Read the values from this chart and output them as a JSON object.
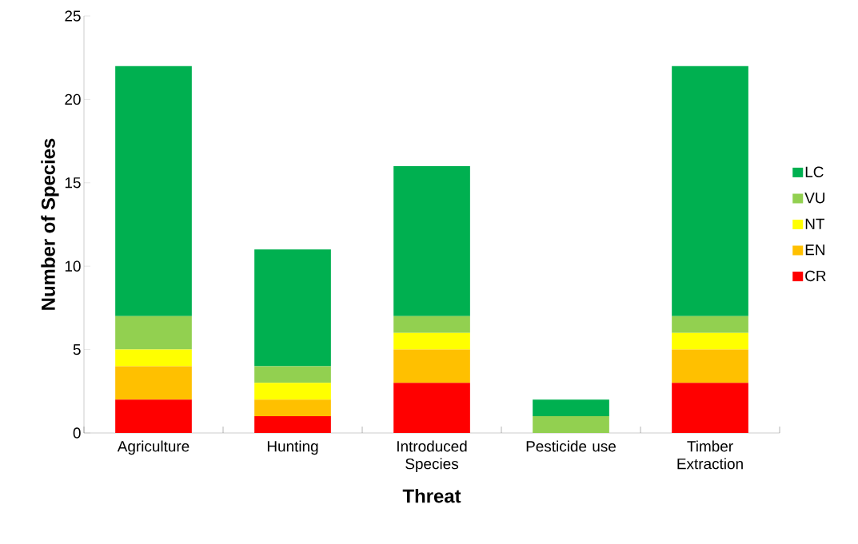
{
  "chart_data": {
    "type": "bar",
    "stacked": true,
    "xlabel": "Threat",
    "ylabel": "Number of Species",
    "categories": [
      "Agriculture",
      "Hunting",
      "Introduced Species",
      "Pesticide use",
      "Timber Extraction"
    ],
    "series": [
      {
        "name": "CR",
        "color": "#ff0000",
        "values": [
          2,
          1,
          3,
          0,
          3
        ]
      },
      {
        "name": "EN",
        "color": "#ffc000",
        "values": [
          2,
          1,
          2,
          0,
          2
        ]
      },
      {
        "name": "NT",
        "color": "#ffff00",
        "values": [
          1,
          1,
          1,
          0,
          1
        ]
      },
      {
        "name": "VU",
        "color": "#92d050",
        "values": [
          2,
          1,
          1,
          1,
          1
        ]
      },
      {
        "name": "LC",
        "color": "#00b050",
        "values": [
          15,
          7,
          9,
          1,
          15
        ]
      }
    ],
    "ylim": [
      0,
      25
    ],
    "yticks": [
      0,
      5,
      10,
      15,
      20,
      25
    ],
    "grid": false,
    "legend": "right"
  }
}
